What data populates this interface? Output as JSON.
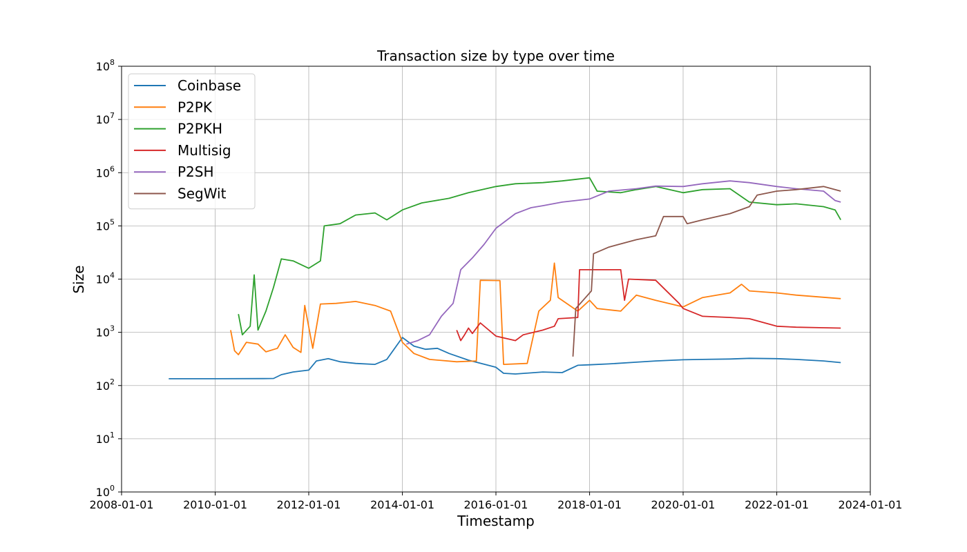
{
  "chart_data": {
    "type": "line",
    "title": "Transaction size by type over time",
    "xlabel": "Timestamp",
    "ylabel": "Size",
    "yscale": "log",
    "ylim": [
      1,
      100000000
    ],
    "xlim": [
      "2008-01-01",
      "2024-01-01"
    ],
    "x_ticks": [
      "2008-01-01",
      "2010-01-01",
      "2012-01-01",
      "2014-01-01",
      "2016-01-01",
      "2018-01-01",
      "2020-01-01",
      "2022-01-01",
      "2024-01-01"
    ],
    "y_ticks": [
      {
        "value": 1,
        "base": "10",
        "exp": "0"
      },
      {
        "value": 10,
        "base": "10",
        "exp": "1"
      },
      {
        "value": 100,
        "base": "10",
        "exp": "2"
      },
      {
        "value": 1000,
        "base": "10",
        "exp": "3"
      },
      {
        "value": 10000,
        "base": "10",
        "exp": "4"
      },
      {
        "value": 100000,
        "base": "10",
        "exp": "5"
      },
      {
        "value": 1000000,
        "base": "10",
        "exp": "6"
      },
      {
        "value": 10000000,
        "base": "10",
        "exp": "7"
      },
      {
        "value": 100000000,
        "base": "10",
        "exp": "8"
      }
    ],
    "grid": true,
    "legend_position": "upper-left",
    "series": [
      {
        "name": "Coinbase",
        "color": "#1f77b4",
        "points": [
          [
            "2009-01-03",
            134
          ],
          [
            "2010-01-01",
            134
          ],
          [
            "2011-01-01",
            135
          ],
          [
            "2011-04-01",
            136
          ],
          [
            "2011-06-01",
            160
          ],
          [
            "2011-09-01",
            180
          ],
          [
            "2012-01-01",
            195
          ],
          [
            "2012-03-01",
            290
          ],
          [
            "2012-06-01",
            320
          ],
          [
            "2012-09-01",
            280
          ],
          [
            "2013-01-01",
            260
          ],
          [
            "2013-06-01",
            250
          ],
          [
            "2013-09-01",
            310
          ],
          [
            "2014-01-01",
            800
          ],
          [
            "2014-04-01",
            550
          ],
          [
            "2014-07-01",
            480
          ],
          [
            "2014-10-01",
            500
          ],
          [
            "2015-01-01",
            400
          ],
          [
            "2015-06-01",
            300
          ],
          [
            "2016-01-01",
            220
          ],
          [
            "2016-03-01",
            170
          ],
          [
            "2016-06-01",
            165
          ],
          [
            "2017-01-01",
            180
          ],
          [
            "2017-06-01",
            175
          ],
          [
            "2017-10-01",
            240
          ],
          [
            "2018-01-01",
            245
          ],
          [
            "2018-06-01",
            255
          ],
          [
            "2019-01-01",
            275
          ],
          [
            "2019-06-01",
            290
          ],
          [
            "2020-01-01",
            305
          ],
          [
            "2020-06-01",
            310
          ],
          [
            "2021-01-01",
            315
          ],
          [
            "2021-06-01",
            325
          ],
          [
            "2022-01-01",
            320
          ],
          [
            "2022-06-01",
            310
          ],
          [
            "2023-01-01",
            290
          ],
          [
            "2023-05-15",
            270
          ]
        ]
      },
      {
        "name": "P2PK",
        "color": "#ff7f0e",
        "points": [
          [
            "2010-05-01",
            1100
          ],
          [
            "2010-06-01",
            450
          ],
          [
            "2010-07-01",
            380
          ],
          [
            "2010-09-01",
            650
          ],
          [
            "2010-12-01",
            600
          ],
          [
            "2011-02-01",
            430
          ],
          [
            "2011-05-01",
            500
          ],
          [
            "2011-07-01",
            900
          ],
          [
            "2011-09-01",
            520
          ],
          [
            "2011-11-01",
            420
          ],
          [
            "2011-12-01",
            3200
          ],
          [
            "2012-02-01",
            500
          ],
          [
            "2012-04-01",
            3400
          ],
          [
            "2012-08-01",
            3500
          ],
          [
            "2013-01-01",
            3800
          ],
          [
            "2013-06-01",
            3200
          ],
          [
            "2013-10-01",
            2500
          ],
          [
            "2014-01-01",
            650
          ],
          [
            "2014-04-01",
            400
          ],
          [
            "2014-08-01",
            310
          ],
          [
            "2015-03-01",
            280
          ],
          [
            "2015-08-01",
            290
          ],
          [
            "2015-09-01",
            9500
          ],
          [
            "2016-02-01",
            9400
          ],
          [
            "2016-03-01",
            250
          ],
          [
            "2016-09-01",
            260
          ],
          [
            "2016-12-01",
            2500
          ],
          [
            "2017-03-01",
            4000
          ],
          [
            "2017-04-01",
            20000
          ],
          [
            "2017-05-01",
            4500
          ],
          [
            "2017-10-01",
            2500
          ],
          [
            "2018-01-01",
            4000
          ],
          [
            "2018-03-01",
            2800
          ],
          [
            "2018-09-01",
            2500
          ],
          [
            "2019-01-01",
            5000
          ],
          [
            "2019-06-01",
            4000
          ],
          [
            "2020-01-01",
            3000
          ],
          [
            "2020-06-01",
            4500
          ],
          [
            "2021-01-01",
            5500
          ],
          [
            "2021-04-01",
            8000
          ],
          [
            "2021-06-01",
            6000
          ],
          [
            "2022-01-01",
            5500
          ],
          [
            "2022-06-01",
            5000
          ],
          [
            "2023-05-15",
            4300
          ]
        ]
      },
      {
        "name": "P2PKH",
        "color": "#2ca02c",
        "points": [
          [
            "2010-07-01",
            2200
          ],
          [
            "2010-08-01",
            900
          ],
          [
            "2010-10-01",
            1300
          ],
          [
            "2010-11-01",
            12000
          ],
          [
            "2010-12-01",
            1100
          ],
          [
            "2011-02-01",
            2500
          ],
          [
            "2011-04-01",
            7000
          ],
          [
            "2011-06-01",
            24000
          ],
          [
            "2011-09-01",
            22000
          ],
          [
            "2012-01-01",
            16000
          ],
          [
            "2012-04-01",
            22000
          ],
          [
            "2012-05-01",
            100000
          ],
          [
            "2012-09-01",
            110000
          ],
          [
            "2013-01-01",
            160000
          ],
          [
            "2013-06-01",
            175000
          ],
          [
            "2013-09-01",
            130000
          ],
          [
            "2014-01-01",
            200000
          ],
          [
            "2014-06-01",
            270000
          ],
          [
            "2015-01-01",
            330000
          ],
          [
            "2015-06-01",
            420000
          ],
          [
            "2016-01-01",
            550000
          ],
          [
            "2016-06-01",
            620000
          ],
          [
            "2017-01-01",
            650000
          ],
          [
            "2017-06-01",
            700000
          ],
          [
            "2018-01-01",
            800000
          ],
          [
            "2018-03-01",
            450000
          ],
          [
            "2018-09-01",
            420000
          ],
          [
            "2019-01-01",
            480000
          ],
          [
            "2019-06-01",
            550000
          ],
          [
            "2020-01-01",
            420000
          ],
          [
            "2020-06-01",
            480000
          ],
          [
            "2021-01-01",
            500000
          ],
          [
            "2021-06-01",
            280000
          ],
          [
            "2022-01-01",
            250000
          ],
          [
            "2022-06-01",
            260000
          ],
          [
            "2023-01-01",
            230000
          ],
          [
            "2023-04-01",
            200000
          ],
          [
            "2023-05-15",
            130000
          ]
        ]
      },
      {
        "name": "Multisig",
        "color": "#d62728",
        "points": [
          [
            "2015-03-01",
            1100
          ],
          [
            "2015-04-01",
            700
          ],
          [
            "2015-05-01",
            900
          ],
          [
            "2015-06-01",
            1200
          ],
          [
            "2015-07-01",
            950
          ],
          [
            "2015-09-01",
            1500
          ],
          [
            "2016-01-01",
            850
          ],
          [
            "2016-06-01",
            700
          ],
          [
            "2016-08-01",
            900
          ],
          [
            "2017-01-01",
            1100
          ],
          [
            "2017-04-01",
            1300
          ],
          [
            "2017-05-01",
            1800
          ],
          [
            "2017-10-01",
            1900
          ],
          [
            "2017-10-15",
            15000
          ],
          [
            "2018-09-01",
            15000
          ],
          [
            "2018-10-01",
            4000
          ],
          [
            "2018-11-01",
            10000
          ],
          [
            "2019-06-01",
            9500
          ],
          [
            "2019-12-01",
            3500
          ],
          [
            "2020-01-01",
            2800
          ],
          [
            "2020-06-01",
            2000
          ],
          [
            "2021-01-01",
            1900
          ],
          [
            "2021-06-01",
            1800
          ],
          [
            "2022-01-01",
            1300
          ],
          [
            "2022-06-01",
            1250
          ],
          [
            "2023-01-01",
            1220
          ],
          [
            "2023-05-15",
            1200
          ]
        ]
      },
      {
        "name": "P2SH",
        "color": "#9467bd",
        "points": [
          [
            "2014-02-01",
            600
          ],
          [
            "2014-05-01",
            700
          ],
          [
            "2014-08-01",
            900
          ],
          [
            "2014-11-01",
            2000
          ],
          [
            "2015-02-01",
            3500
          ],
          [
            "2015-04-01",
            15000
          ],
          [
            "2015-07-01",
            25000
          ],
          [
            "2015-10-01",
            45000
          ],
          [
            "2016-01-01",
            90000
          ],
          [
            "2016-06-01",
            170000
          ],
          [
            "2016-10-01",
            220000
          ],
          [
            "2017-01-01",
            240000
          ],
          [
            "2017-06-01",
            280000
          ],
          [
            "2018-01-01",
            320000
          ],
          [
            "2018-06-01",
            450000
          ],
          [
            "2019-01-01",
            500000
          ],
          [
            "2019-06-01",
            560000
          ],
          [
            "2020-01-01",
            550000
          ],
          [
            "2020-06-01",
            620000
          ],
          [
            "2021-01-01",
            700000
          ],
          [
            "2021-06-01",
            650000
          ],
          [
            "2022-01-01",
            550000
          ],
          [
            "2022-06-01",
            500000
          ],
          [
            "2023-01-01",
            450000
          ],
          [
            "2023-04-01",
            300000
          ],
          [
            "2023-05-15",
            280000
          ]
        ]
      },
      {
        "name": "SegWit",
        "color": "#8c564b",
        "points": [
          [
            "2017-08-24",
            350
          ],
          [
            "2017-09-15",
            2800
          ],
          [
            "2017-12-01",
            4500
          ],
          [
            "2018-01-15",
            6000
          ],
          [
            "2018-02-01",
            30000
          ],
          [
            "2018-06-01",
            40000
          ],
          [
            "2019-01-01",
            55000
          ],
          [
            "2019-06-01",
            65000
          ],
          [
            "2019-08-01",
            150000
          ],
          [
            "2020-01-01",
            150000
          ],
          [
            "2020-02-01",
            110000
          ],
          [
            "2020-06-01",
            130000
          ],
          [
            "2021-01-01",
            170000
          ],
          [
            "2021-06-01",
            230000
          ],
          [
            "2021-08-01",
            380000
          ],
          [
            "2022-01-01",
            450000
          ],
          [
            "2022-06-01",
            480000
          ],
          [
            "2023-01-01",
            550000
          ],
          [
            "2023-05-15",
            450000
          ]
        ]
      }
    ]
  }
}
